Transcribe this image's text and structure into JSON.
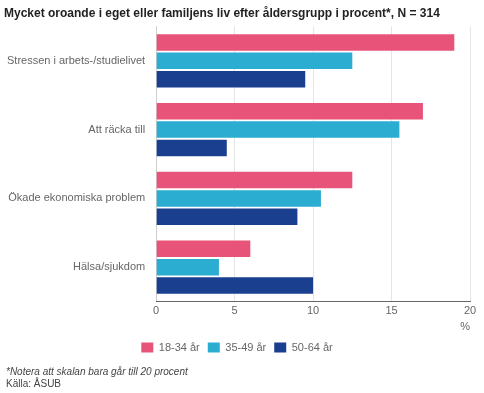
{
  "chart_data": {
    "type": "bar",
    "orientation": "horizontal",
    "title": "Mycket oroande i eget eller familjens liv efter åldersgrupp i procent*, N = 314",
    "categories": [
      "Stressen i arbets-/studielivet",
      "Att räcka till",
      "Ökade ekonomiska problem",
      "Hälsa/sjukdom"
    ],
    "series": [
      {
        "name": "18-34 år",
        "color": "#E8537A",
        "values": [
          19,
          17,
          12.5,
          6
        ]
      },
      {
        "name": "35-49 år",
        "color": "#2BACD1",
        "values": [
          12.5,
          15.5,
          10.5,
          4
        ]
      },
      {
        "name": "50-64 år",
        "color": "#1B3F8F",
        "values": [
          9.5,
          4.5,
          9,
          10
        ]
      }
    ],
    "xlim": [
      0,
      20
    ],
    "xticks": [
      0,
      5,
      10,
      15,
      20
    ],
    "xlabel": "%",
    "grid": true,
    "legend": "bottom",
    "annotations": [
      "*Notera att skalan bara går till 20 procent",
      "Källa: ÅSUB"
    ]
  }
}
